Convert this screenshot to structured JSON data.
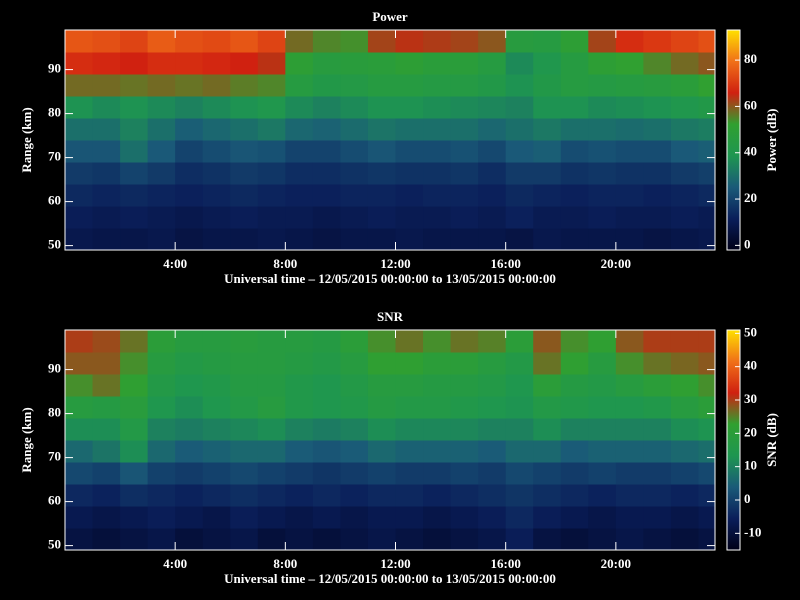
{
  "chart_data": [
    {
      "type": "heatmap",
      "title": "Power",
      "xlabel": "Universal time – 12/05/2015 00:00:00 to 13/05/2015 00:00:00",
      "ylabel": "Range (km)",
      "colorbar_label": "Power (dB)",
      "xlim": [
        0,
        23.6
      ],
      "ylim": [
        49,
        99
      ],
      "xticks": [
        {
          "value": 4,
          "label": "4:00"
        },
        {
          "value": 8,
          "label": "8:00"
        },
        {
          "value": 12,
          "label": "12:00"
        },
        {
          "value": 16,
          "label": "16:00"
        },
        {
          "value": 20,
          "label": "20:00"
        }
      ],
      "yticks": [
        50,
        60,
        70,
        80,
        90
      ],
      "clim": [
        -2,
        93
      ],
      "cticks": [
        0,
        20,
        40,
        60,
        80
      ],
      "colormap": [
        "#000018",
        "#0a1e5a",
        "#1a5a78",
        "#1e9650",
        "#30a030",
        "#d02010",
        "#f07018",
        "#ffe000"
      ],
      "xbins": [
        0,
        1,
        2,
        3,
        4,
        5,
        6,
        7,
        8,
        9,
        10,
        11,
        12,
        13,
        14,
        15,
        16,
        17,
        18,
        19,
        20,
        21,
        22,
        23,
        23.6
      ],
      "ybins": [
        49,
        54,
        59,
        64,
        69,
        74,
        79,
        84,
        89,
        94,
        99
      ],
      "values": [
        [
          9,
          8,
          8,
          9,
          7,
          8,
          8,
          9,
          8,
          7,
          8,
          8,
          9,
          8,
          8,
          8,
          7,
          9,
          8,
          8,
          8,
          7,
          8,
          9
        ],
        [
          11,
          10,
          11,
          10,
          9,
          10,
          11,
          10,
          10,
          9,
          10,
          11,
          10,
          10,
          11,
          10,
          12,
          10,
          10,
          11,
          10,
          10,
          11,
          10
        ],
        [
          14,
          13,
          14,
          13,
          12,
          13,
          14,
          13,
          12,
          12,
          13,
          13,
          12,
          13,
          13,
          12,
          14,
          13,
          12,
          13,
          13,
          12,
          13,
          14
        ],
        [
          18,
          17,
          20,
          18,
          15,
          16,
          18,
          17,
          15,
          15,
          16,
          17,
          16,
          16,
          17,
          15,
          18,
          18,
          16,
          17,
          16,
          16,
          18,
          19
        ],
        [
          24,
          24,
          30,
          25,
          20,
          22,
          24,
          23,
          20,
          20,
          22,
          24,
          22,
          22,
          23,
          21,
          25,
          26,
          22,
          23,
          22,
          22,
          25,
          26
        ],
        [
          30,
          30,
          34,
          30,
          26,
          28,
          30,
          32,
          28,
          27,
          29,
          31,
          30,
          30,
          30,
          28,
          30,
          32,
          30,
          30,
          29,
          30,
          32,
          33
        ],
        [
          38,
          36,
          38,
          36,
          34,
          36,
          38,
          40,
          36,
          34,
          36,
          38,
          38,
          37,
          36,
          35,
          34,
          38,
          38,
          36,
          37,
          38,
          40,
          42
        ],
        [
          58,
          58,
          57,
          58,
          57,
          58,
          56,
          55,
          45,
          42,
          43,
          45,
          45,
          44,
          44,
          42,
          38,
          42,
          45,
          44,
          45,
          46,
          48,
          52
        ],
        [
          68,
          67,
          66,
          68,
          68,
          67,
          66,
          64,
          50,
          46,
          47,
          48,
          50,
          48,
          48,
          45,
          36,
          40,
          45,
          50,
          52,
          55,
          58,
          60
        ],
        [
          75,
          74,
          72,
          76,
          74,
          73,
          75,
          72,
          58,
          55,
          54,
          62,
          64,
          63,
          62,
          60,
          46,
          45,
          50,
          62,
          68,
          70,
          72,
          74
        ]
      ]
    },
    {
      "type": "heatmap",
      "title": "SNR",
      "xlabel": "Universal time – 12/05/2015 00:00:00 to 13/05/2015 00:00:00",
      "ylabel": "Range (km)",
      "colorbar_label": "SNR (dB)",
      "xlim": [
        0,
        23.6
      ],
      "ylim": [
        49,
        99
      ],
      "xticks": [
        {
          "value": 4,
          "label": "4:00"
        },
        {
          "value": 8,
          "label": "8:00"
        },
        {
          "value": 12,
          "label": "12:00"
        },
        {
          "value": 16,
          "label": "16:00"
        },
        {
          "value": 20,
          "label": "20:00"
        }
      ],
      "yticks": [
        50,
        60,
        70,
        80,
        90
      ],
      "clim": [
        -15,
        51
      ],
      "cticks": [
        -10,
        0,
        10,
        20,
        30,
        40,
        50
      ],
      "colormap": [
        "#000018",
        "#0a1e5a",
        "#1a5a78",
        "#1e9650",
        "#30a030",
        "#d02010",
        "#f07018",
        "#ffe000"
      ],
      "xbins": [
        0,
        1,
        2,
        3,
        4,
        5,
        6,
        7,
        8,
        9,
        10,
        11,
        12,
        13,
        14,
        15,
        16,
        17,
        18,
        19,
        20,
        21,
        22,
        23,
        23.6
      ],
      "ybins": [
        49,
        54,
        59,
        64,
        69,
        74,
        79,
        84,
        89,
        94,
        99
      ],
      "values": [
        [
          -9,
          -10,
          -9,
          -8,
          -10,
          -9,
          -8,
          -10,
          -9,
          -10,
          -9,
          -8,
          -9,
          -10,
          -9,
          -8,
          -6,
          -9,
          -10,
          -9,
          -8,
          -9,
          -10,
          -9
        ],
        [
          -7,
          -8,
          -7,
          -6,
          -7,
          -8,
          -6,
          -7,
          -8,
          -7,
          -8,
          -7,
          -7,
          -8,
          -7,
          -6,
          -4,
          -6,
          -7,
          -8,
          -7,
          -7,
          -8,
          -7
        ],
        [
          -4,
          -5,
          -3,
          -4,
          -5,
          -4,
          -3,
          -4,
          -5,
          -4,
          -5,
          -4,
          -4,
          -5,
          -4,
          -3,
          -2,
          -3,
          -4,
          -5,
          -4,
          -4,
          -5,
          -4
        ],
        [
          1,
          0,
          3,
          0,
          -1,
          0,
          1,
          0,
          -1,
          -2,
          -1,
          0,
          -1,
          -1,
          0,
          -1,
          1,
          0,
          -1,
          0,
          -1,
          -1,
          0,
          1
        ],
        [
          6,
          8,
          12,
          6,
          4,
          5,
          6,
          6,
          4,
          3,
          4,
          6,
          5,
          5,
          5,
          4,
          6,
          6,
          4,
          5,
          5,
          5,
          6,
          7
        ],
        [
          12,
          12,
          16,
          10,
          9,
          10,
          11,
          12,
          10,
          9,
          10,
          12,
          11,
          11,
          11,
          10,
          10,
          12,
          10,
          10,
          10,
          10,
          12,
          13
        ],
        [
          18,
          17,
          19,
          14,
          12,
          14,
          16,
          18,
          15,
          14,
          15,
          17,
          16,
          16,
          15,
          14,
          13,
          16,
          15,
          14,
          14,
          15,
          18,
          20
        ],
        [
          24,
          26,
          22,
          16,
          14,
          15,
          17,
          17,
          15,
          14,
          16,
          18,
          18,
          17,
          17,
          16,
          14,
          20,
          17,
          16,
          18,
          20,
          22,
          24
        ],
        [
          28,
          28,
          24,
          18,
          16,
          17,
          18,
          18,
          17,
          16,
          18,
          22,
          22,
          20,
          20,
          18,
          16,
          26,
          22,
          18,
          24,
          26,
          27,
          28
        ],
        [
          30,
          29,
          26,
          20,
          18,
          18,
          19,
          18,
          18,
          17,
          20,
          24,
          26,
          24,
          26,
          25,
          20,
          28,
          24,
          22,
          28,
          30,
          30,
          30
        ]
      ]
    }
  ]
}
